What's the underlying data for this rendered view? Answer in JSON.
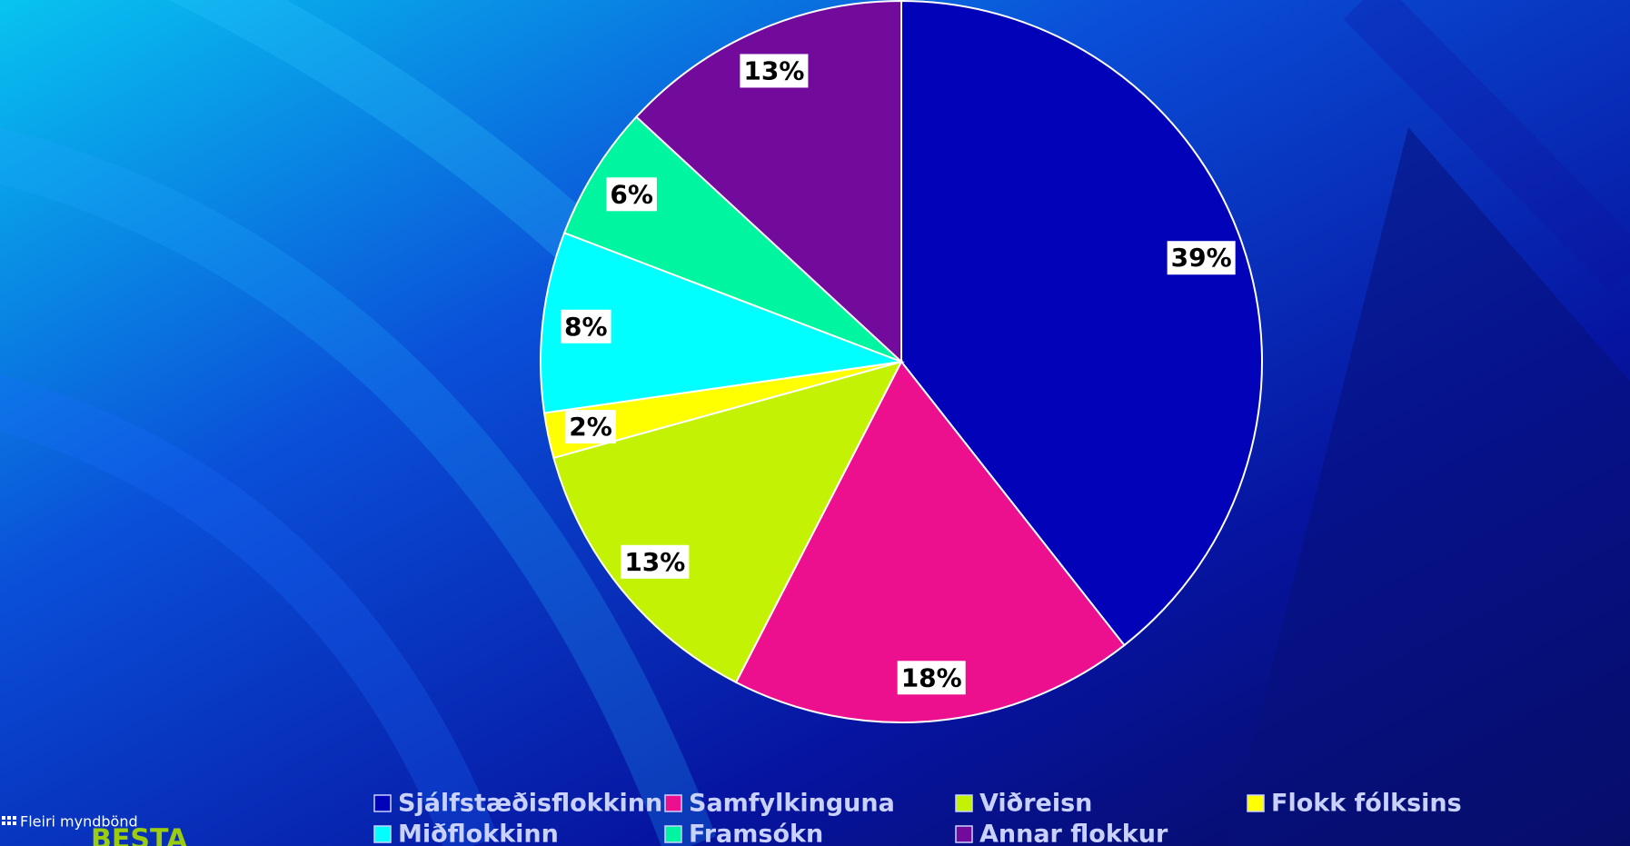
{
  "chart_data": {
    "type": "pie",
    "series": [
      {
        "name": "Sjálfstæðisflokkinn",
        "color": "#0202b8",
        "values": [
          39
        ],
        "value_labels": [
          "39%"
        ]
      },
      {
        "name": "Samfylkinguna",
        "color": "#ec0f8e",
        "values": [
          18
        ],
        "value_labels": [
          "18%"
        ]
      },
      {
        "name": "Viðreisn",
        "color": "#c4f205",
        "values": [
          13
        ],
        "value_labels": [
          "13%"
        ]
      },
      {
        "name": "Flokk fólksins",
        "color": "#ffff00",
        "values": [
          2
        ],
        "value_labels": [
          "2%"
        ]
      },
      {
        "name": "Miðflokkinn",
        "color": "#00ffff",
        "values": [
          8
        ],
        "value_labels": [
          "8%"
        ]
      },
      {
        "name": "Framsókn",
        "color": "#00f5a0",
        "values": [
          6
        ],
        "value_labels": [
          "6%"
        ]
      },
      {
        "name": "Annar flokkur",
        "color": "#720b9c",
        "values": [
          13
        ],
        "value_labels": [
          "13%"
        ]
      }
    ]
  },
  "overlay": {
    "more_videos": "Fleiri myndbönd",
    "logo": "BESTA"
  }
}
